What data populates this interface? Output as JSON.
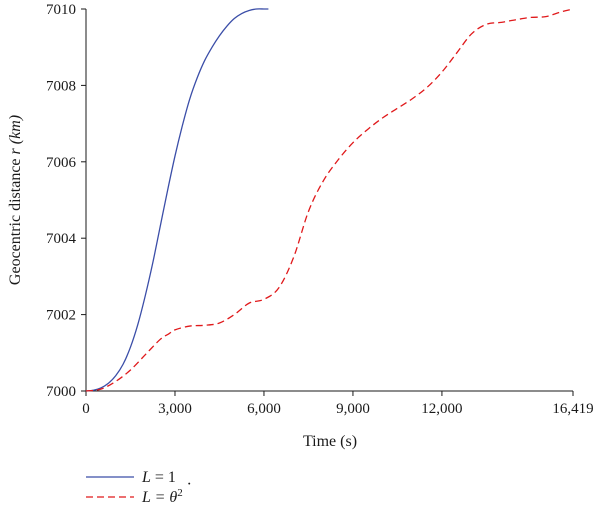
{
  "chart_data": {
    "type": "line",
    "xlabel": "Time (s)",
    "ylabel_main": "Geocentric distance ",
    "ylabel_var": "r",
    "ylabel_unit": "(km)",
    "xlim": [
      0,
      16419
    ],
    "ylim": [
      7000,
      7010
    ],
    "x_ticks": [
      0,
      3000,
      6000,
      9000,
      12000,
      16419
    ],
    "x_tick_labels": [
      "0",
      "3,000",
      "6,000",
      "9,000",
      "12,000",
      "16,419"
    ],
    "y_ticks": [
      7000,
      7002,
      7004,
      7006,
      7008,
      7010
    ],
    "y_tick_labels": [
      "7000",
      "7002",
      "7004",
      "7006",
      "7008",
      "7010"
    ],
    "grid": false,
    "legend_position": "bottom-left",
    "series": [
      {
        "legend_var": "L",
        "legend_eq": " = 1",
        "color": "#3b4ea8",
        "style": "solid",
        "x": [
          0,
          250,
          500,
          750,
          1000,
          1250,
          1500,
          1750,
          2000,
          2250,
          2500,
          2750,
          3000,
          3250,
          3500,
          3750,
          4000,
          4250,
          4500,
          4750,
          5000,
          5250,
          5500,
          5750,
          6000,
          6150
        ],
        "y": [
          7000,
          7000.02,
          7000.08,
          7000.2,
          7000.4,
          7000.7,
          7001.15,
          7001.75,
          7002.5,
          7003.35,
          7004.3,
          7005.25,
          7006.15,
          7006.95,
          7007.65,
          7008.2,
          7008.65,
          7009.0,
          7009.3,
          7009.55,
          7009.75,
          7009.88,
          7009.96,
          7010,
          7010,
          7010
        ]
      },
      {
        "legend_var": "L",
        "legend_eq": " = θ",
        "legend_sup": "2",
        "color": "#e0191b",
        "style": "dashed",
        "x": [
          0,
          500,
          1000,
          1500,
          2000,
          2500,
          2800,
          3000,
          3500,
          4000,
          4500,
          5000,
          5500,
          6000,
          6500,
          7000,
          7500,
          8000,
          8500,
          9000,
          9500,
          10000,
          10500,
          11000,
          11500,
          12000,
          12500,
          13000,
          13500,
          14000,
          14500,
          15000,
          15500,
          16000,
          16419
        ],
        "y": [
          7000,
          7000.05,
          7000.25,
          7000.55,
          7000.95,
          7001.35,
          7001.5,
          7001.6,
          7001.7,
          7001.72,
          7001.78,
          7002.0,
          7002.3,
          7002.4,
          7002.7,
          7003.5,
          7004.7,
          7005.5,
          7006.05,
          7006.5,
          7006.85,
          7007.15,
          7007.4,
          7007.65,
          7007.95,
          7008.35,
          7008.85,
          7009.35,
          7009.6,
          7009.65,
          7009.72,
          7009.78,
          7009.8,
          7009.92,
          7010
        ]
      }
    ]
  }
}
